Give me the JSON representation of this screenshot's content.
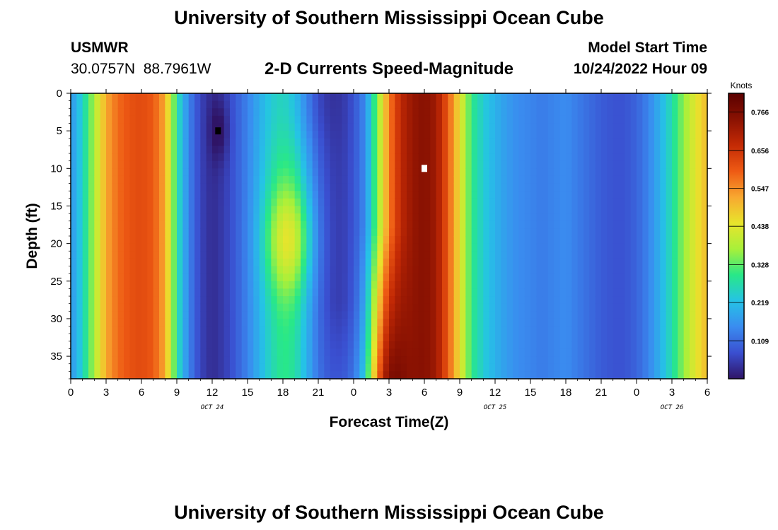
{
  "page": {
    "title_top": "University of Southern Mississippi Ocean Cube",
    "title_bottom": "University of Southern Mississippi Ocean Cube"
  },
  "station": {
    "name": "USMWR",
    "coords": "30.0757N  88.7961W"
  },
  "model": {
    "label": "Model Start Time",
    "start": "10/24/2022 Hour 09"
  },
  "chart_data": {
    "type": "heatmap",
    "title": "2-D Currents Speed-Magnitude",
    "xlabel": "Forecast Time(Z)",
    "ylabel": "Depth (ft)",
    "x_hours_range": [
      0,
      54
    ],
    "x_ticks": [
      "0",
      "3",
      "6",
      "9",
      "12",
      "15",
      "18",
      "21",
      "0",
      "3",
      "6",
      "9",
      "12",
      "15",
      "18",
      "21",
      "0",
      "3",
      "6"
    ],
    "x_dates": [
      {
        "label": "OCT 24",
        "hour": 12
      },
      {
        "label": "OCT 25",
        "hour": 36
      },
      {
        "label": "OCT 26",
        "hour": 51
      }
    ],
    "y_range_ft": [
      0,
      38
    ],
    "y_ticks": [
      0,
      5,
      10,
      15,
      20,
      25,
      30,
      35
    ],
    "colorbar": {
      "unit": "Knots",
      "min": 0.0,
      "max": 0.82,
      "ticks": [
        "0.766",
        "0.656",
        "0.547",
        "0.438",
        "0.328",
        "0.219",
        "0.109"
      ],
      "colors": [
        "#2f1466",
        "#3a4fd0",
        "#3a8cf0",
        "#25c3e6",
        "#28e888",
        "#a8f03a",
        "#e8e42c",
        "#f8a830",
        "#ee5a14",
        "#c42a05",
        "#8a1202",
        "#5a0000"
      ]
    },
    "speed_profile_knots": [
      {
        "hour": 0,
        "value": 0.16
      },
      {
        "hour": 1,
        "value": 0.25
      },
      {
        "hour": 2,
        "value": 0.38
      },
      {
        "hour": 3,
        "value": 0.52
      },
      {
        "hour": 4,
        "value": 0.58
      },
      {
        "hour": 5,
        "value": 0.61
      },
      {
        "hour": 6,
        "value": 0.62
      },
      {
        "hour": 7,
        "value": 0.6
      },
      {
        "hour": 8,
        "value": 0.52
      },
      {
        "hour": 9,
        "value": 0.28
      },
      {
        "hour": 10,
        "value": 0.14
      },
      {
        "hour": 11,
        "value": 0.06
      },
      {
        "hour": 12,
        "value": 0.03
      },
      {
        "hour": 13,
        "value": 0.05
      },
      {
        "hour": 14,
        "value": 0.09
      },
      {
        "hour": 15,
        "value": 0.14
      },
      {
        "hour": 16,
        "value": 0.2
      },
      {
        "hour": 17,
        "value": 0.26
      },
      {
        "hour": 18,
        "value": 0.3
      },
      {
        "hour": 19,
        "value": 0.28
      },
      {
        "hour": 20,
        "value": 0.2
      },
      {
        "hour": 21,
        "value": 0.11
      },
      {
        "hour": 22,
        "value": 0.06
      },
      {
        "hour": 23,
        "value": 0.05
      },
      {
        "hour": 24,
        "value": 0.08
      },
      {
        "hour": 25,
        "value": 0.15
      },
      {
        "hour": 26,
        "value": 0.35
      },
      {
        "hour": 27,
        "value": 0.56
      },
      {
        "hour": 28,
        "value": 0.68
      },
      {
        "hour": 29,
        "value": 0.73
      },
      {
        "hour": 30,
        "value": 0.75
      },
      {
        "hour": 31,
        "value": 0.72
      },
      {
        "hour": 32,
        "value": 0.6
      },
      {
        "hour": 33,
        "value": 0.45
      },
      {
        "hour": 34,
        "value": 0.3
      },
      {
        "hour": 35,
        "value": 0.24
      },
      {
        "hour": 36,
        "value": 0.2
      },
      {
        "hour": 37,
        "value": 0.17
      },
      {
        "hour": 38,
        "value": 0.15
      },
      {
        "hour": 39,
        "value": 0.14
      },
      {
        "hour": 40,
        "value": 0.13
      },
      {
        "hour": 41,
        "value": 0.14
      },
      {
        "hour": 42,
        "value": 0.15
      },
      {
        "hour": 43,
        "value": 0.13
      },
      {
        "hour": 44,
        "value": 0.11
      },
      {
        "hour": 45,
        "value": 0.09
      },
      {
        "hour": 46,
        "value": 0.08
      },
      {
        "hour": 47,
        "value": 0.08
      },
      {
        "hour": 48,
        "value": 0.1
      },
      {
        "hour": 49,
        "value": 0.14
      },
      {
        "hour": 50,
        "value": 0.2
      },
      {
        "hour": 51,
        "value": 0.27
      },
      {
        "hour": 52,
        "value": 0.36
      },
      {
        "hour": 53,
        "value": 0.44
      },
      {
        "hour": 54,
        "value": 0.5
      }
    ],
    "markers": [
      {
        "type": "min",
        "hour": 12.5,
        "depth_ft": 5
      },
      {
        "type": "max",
        "hour": 30,
        "depth_ft": 10
      }
    ]
  }
}
